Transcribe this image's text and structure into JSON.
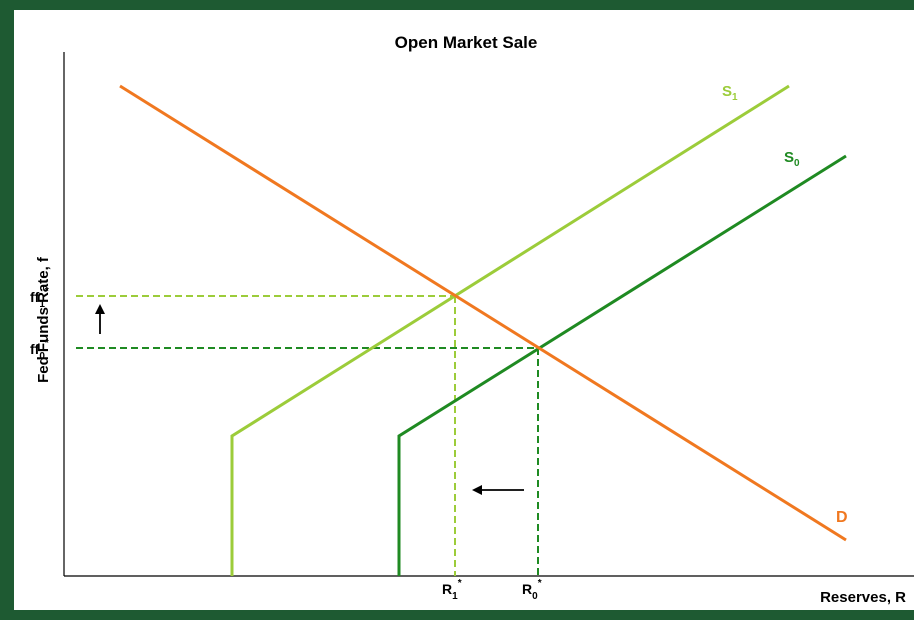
{
  "title": "Open Market Sale",
  "axes": {
    "y_label": "Fed Funds Rate, f",
    "x_label": "Reserves, R"
  },
  "curves": {
    "demand": {
      "label": "D",
      "color": "#f07820"
    },
    "supply_initial": {
      "label": "S",
      "sub": "0",
      "color": "#1f8a22"
    },
    "supply_new": {
      "label": "S",
      "sub": "1",
      "color": "#9ccc3a"
    }
  },
  "rate_labels": {
    "ff1": {
      "base": "ff",
      "sub": "1",
      "sup": "*"
    },
    "ff0": {
      "base": "ff",
      "sub": "0",
      "sup": "*"
    }
  },
  "reserve_labels": {
    "r1": {
      "base": "R",
      "sub": "1",
      "sup": "*"
    },
    "r0": {
      "base": "R",
      "sub": "0",
      "sup": "*"
    }
  },
  "colors": {
    "background": "#1e5a32",
    "axis": "#000000",
    "demand": "#f07820",
    "supply_initial": "#1f8a22",
    "supply_new": "#9ccc3a"
  }
}
